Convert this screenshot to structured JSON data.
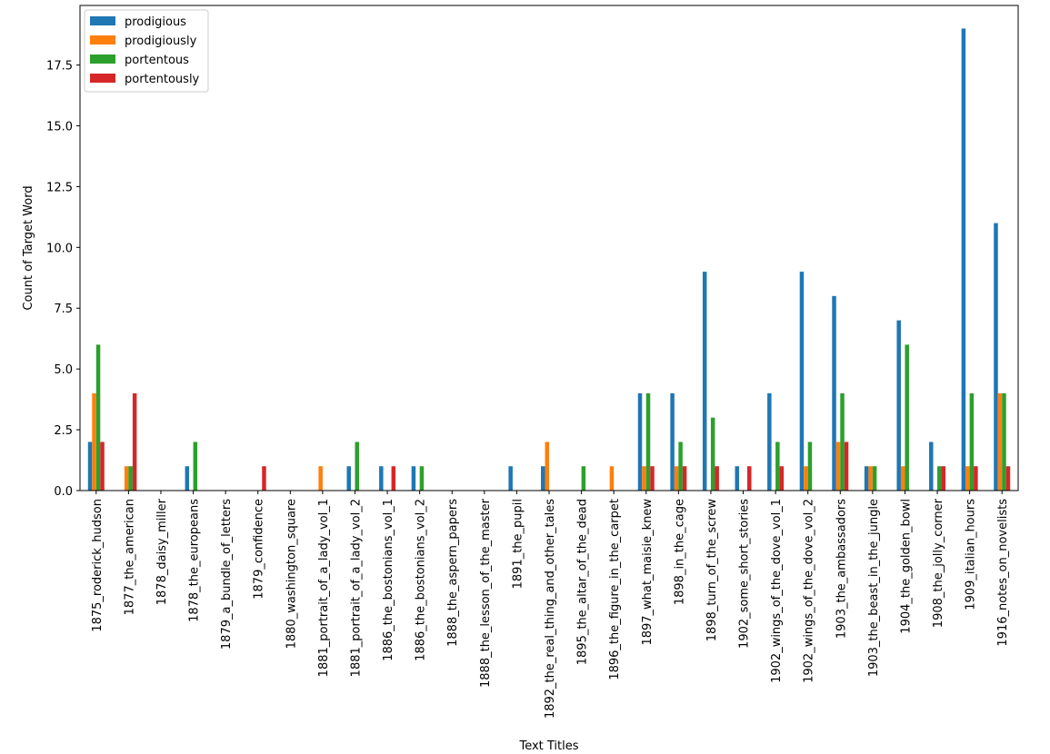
{
  "chart_data": {
    "type": "bar",
    "xlabel": "Text Titles",
    "ylabel": "Count of Target Word",
    "ylim": [
      0,
      19.95
    ],
    "yticks": [
      0.0,
      2.5,
      5.0,
      7.5,
      10.0,
      12.5,
      15.0,
      17.5
    ],
    "ytick_labels": [
      "0.0",
      "2.5",
      "5.0",
      "7.5",
      "10.0",
      "12.5",
      "15.0",
      "17.5"
    ],
    "legend_position": "top-left",
    "grid": false,
    "categories": [
      "1875_roderick_hudson",
      "1877_the_american",
      "1878_daisy_miller",
      "1878_the_europeans",
      "1879_a_bundle_of_letters",
      "1879_confidence",
      "1880_washington_square",
      "1881_portrait_of_a_lady_vol_1",
      "1881_portrait_of_a_lady_vol_2",
      "1886_the_bostonians_vol_1",
      "1886_the_bostonians_vol_2",
      "1888_the_aspern_papers",
      "1888_the_lesson_of_the_master",
      "1891_the_pupil",
      "1892_the_real_thing_and_other_tales",
      "1895_the_altar_of_the_dead",
      "1896_the_figure_in_the_carpet",
      "1897_what_maisie_knew",
      "1898_in_the_cage",
      "1898_turn_of_the_screw",
      "1902_some_short_stories",
      "1902_wings_of_the_dove_vol_1",
      "1902_wings_of_the_dove_vol_2",
      "1903_the_ambassadors",
      "1903_the_beast_in_the_jungle",
      "1904_the_golden_bowl",
      "1908_the_jolly_corner",
      "1909_italian_hours",
      "1916_notes_on_novelists"
    ],
    "series": [
      {
        "name": "prodigious",
        "color": "#1f77b4",
        "values": [
          2,
          0,
          0,
          1,
          0,
          0,
          0,
          0,
          1,
          1,
          1,
          0,
          0,
          1,
          1,
          0,
          0,
          4,
          4,
          9,
          1,
          4,
          9,
          8,
          1,
          7,
          2,
          19,
          11
        ]
      },
      {
        "name": "prodigiously",
        "color": "#ff7f0e",
        "values": [
          4,
          1,
          0,
          0,
          0,
          0,
          0,
          1,
          0,
          0,
          0,
          0,
          0,
          0,
          2,
          0,
          1,
          1,
          1,
          0,
          0,
          0,
          1,
          2,
          1,
          1,
          0,
          1,
          4
        ]
      },
      {
        "name": "portentous",
        "color": "#2ca02c",
        "values": [
          6,
          1,
          0,
          2,
          0,
          0,
          0,
          0,
          2,
          0,
          1,
          0,
          0,
          0,
          0,
          1,
          0,
          4,
          2,
          3,
          0,
          2,
          2,
          4,
          1,
          6,
          1,
          4,
          4
        ]
      },
      {
        "name": "portentously",
        "color": "#d62728",
        "values": [
          2,
          4,
          0,
          0,
          0,
          1,
          0,
          0,
          0,
          1,
          0,
          0,
          0,
          0,
          0,
          0,
          0,
          1,
          1,
          1,
          1,
          1,
          0,
          2,
          0,
          0,
          1,
          1,
          1
        ]
      }
    ]
  }
}
